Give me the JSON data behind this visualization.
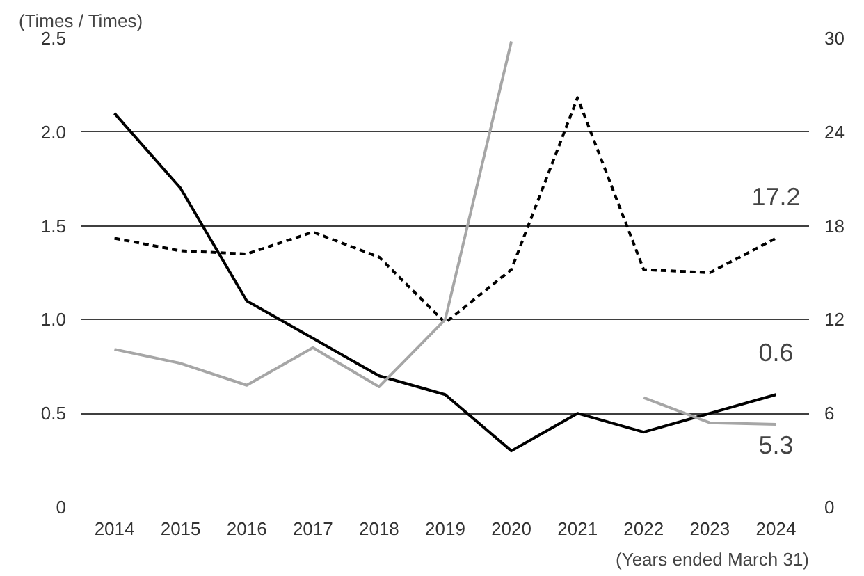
{
  "chart_data": {
    "type": "line",
    "ylabel": "(Times / Times)",
    "annotations": [
      "(Years ended March 31)"
    ],
    "categories": [
      "2014",
      "2015",
      "2016",
      "2017",
      "2018",
      "2019",
      "2020",
      "2021",
      "2022",
      "2023",
      "2024"
    ],
    "ylim": [
      0,
      2.5
    ],
    "yticks": [
      0,
      0.5,
      {
        "value": 1,
        "label": "1.0"
      },
      1.5,
      {
        "value": 2,
        "label": "2.0"
      },
      2.5
    ],
    "y2lim": [
      0,
      30
    ],
    "y2ticks": [
      0,
      6,
      12,
      18,
      24,
      30
    ],
    "grid": "y",
    "series": [
      {
        "color": "#000000",
        "line_style": "solid",
        "values": [
          2.1,
          1.7,
          1.1,
          0.9,
          0.7,
          0.6,
          0.3,
          0.5,
          0.4,
          0.5,
          0.6
        ],
        "value_labels": [
          null,
          null,
          null,
          null,
          null,
          null,
          null,
          null,
          null,
          null,
          "0.6"
        ]
      },
      {
        "color": "#000000",
        "line_style": "dotted",
        "axis": "y2",
        "values": [
          17.2,
          16.4,
          16.2,
          17.6,
          16.0,
          11.8,
          15.2,
          26.2,
          15.2,
          15.0,
          17.2
        ],
        "value_labels": [
          null,
          null,
          null,
          null,
          null,
          null,
          null,
          null,
          null,
          null,
          "17.2"
        ]
      },
      {
        "color": "#a6a6a6",
        "line_style": "solid",
        "axis": "y2",
        "values": [
          10.1,
          9.2,
          7.8,
          10.2,
          7.7,
          12.0,
          29.8,
          null,
          7.0,
          5.4,
          5.3
        ],
        "value_labels": [
          null,
          null,
          null,
          null,
          null,
          null,
          null,
          null,
          null,
          null,
          "5.3"
        ]
      }
    ]
  }
}
